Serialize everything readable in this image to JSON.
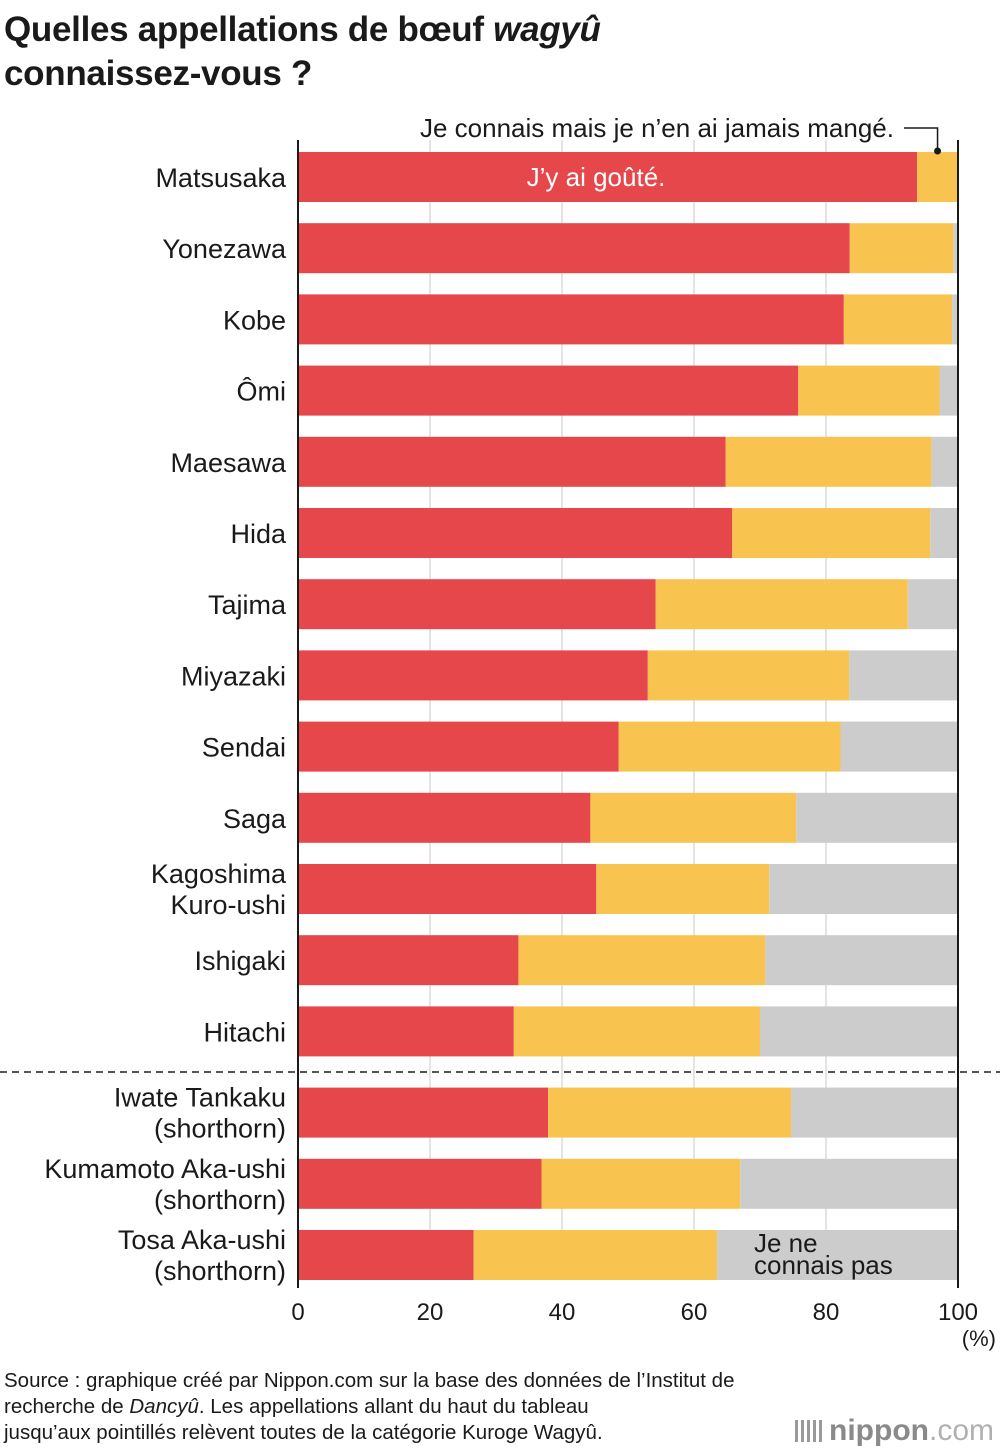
{
  "title": {
    "line1_prefix": "Quelles appellations de bœuf ",
    "line1_italic": "wagyû",
    "line2": "connaissez-vous ?"
  },
  "chart_data": {
    "type": "bar",
    "orientation": "horizontal",
    "stacked": true,
    "categories": [
      [
        "Matsusaka"
      ],
      [
        "Yonezawa"
      ],
      [
        "Kobe"
      ],
      [
        "Ômi"
      ],
      [
        "Maesawa"
      ],
      [
        "Hida"
      ],
      [
        "Tajima"
      ],
      [
        "Miyazaki"
      ],
      [
        "Sendai"
      ],
      [
        "Saga"
      ],
      [
        "Kagoshima",
        "Kuro-ushi"
      ],
      [
        "Ishigaki"
      ],
      [
        "Hitachi"
      ],
      [
        "Iwate Tankaku",
        "(shorthorn)"
      ],
      [
        "Kumamoto Aka-ushi",
        "(shorthorn)"
      ],
      [
        "Tosa Aka-ushi",
        "(shorthorn)"
      ]
    ],
    "series": [
      {
        "name": "J’y ai goûté.",
        "color": "#e5474b",
        "values": [
          93.8,
          83.6,
          82.7,
          75.8,
          64.8,
          65.8,
          54.2,
          53.0,
          48.6,
          44.3,
          45.2,
          33.4,
          32.7,
          37.9,
          36.9,
          26.6
        ]
      },
      {
        "name": "Je connais mais je n’en ai jamais mangé.",
        "color": "#f8c44f",
        "values": [
          6.2,
          15.7,
          16.4,
          21.4,
          31.2,
          30.0,
          38.2,
          30.5,
          33.6,
          31.2,
          26.2,
          37.4,
          37.3,
          36.8,
          30.1,
          36.9
        ]
      },
      {
        "name": "Je ne connais pas",
        "color": "#cccccc",
        "values": [
          0.0,
          0.7,
          0.9,
          2.8,
          4.0,
          4.2,
          7.6,
          16.5,
          17.8,
          24.5,
          28.6,
          29.2,
          30.0,
          25.3,
          33.0,
          36.5
        ]
      }
    ],
    "xlim": [
      0,
      100
    ],
    "xticks": [
      0,
      20,
      40,
      60,
      80,
      100
    ],
    "xunit": "(%)",
    "grid": true,
    "series_labels": {
      "tasted": "J’y ai goûté.",
      "known": "Je connais mais je n’en ai jamais mangé.",
      "unknown_line1": "Je ne",
      "unknown_line2": "connais pas"
    },
    "dashed_separator_after_index": 12
  },
  "source": {
    "line1": "Source : graphique créé par Nippon.com sur la base des données de l’Institut de",
    "line2_prefix": "recherche de ",
    "line2_italic": "Dancyû",
    "line2_suffix": ". Les appellations allant du haut du tableau",
    "line3": "jusqu’aux pointillés relèvent toutes de la catégorie Kuroge Wagyû."
  },
  "logo": {
    "bold": "nippon",
    "domain": ".com"
  }
}
